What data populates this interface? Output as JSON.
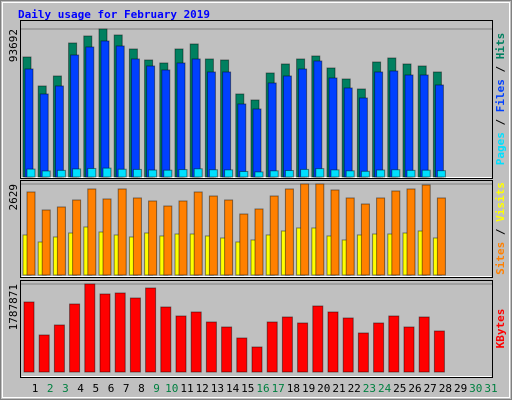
{
  "chart_data": [
    {
      "type": "bar",
      "title": "Daily usage for February 2019",
      "legend_separator": " / ",
      "ylim": [
        0,
        93692
      ],
      "yticks": [
        93692
      ],
      "series": [
        {
          "name": "Pages",
          "color": "#00e0ff",
          "values": [
            5000,
            3800,
            4200,
            5100,
            5400,
            5600,
            4900,
            4800,
            4400,
            4300,
            4700,
            5200,
            4600,
            4500,
            3500,
            3200,
            3900,
            4100,
            4800,
            5300,
            4500,
            3900,
            3600,
            4400,
            4600,
            4200,
            4300,
            4000,
            null,
            null,
            null
          ]
        },
        {
          "name": "Files",
          "color": "#0040ff",
          "values": [
            68370,
            52544,
            57608,
            77233,
            82298,
            86096,
            82931,
            74701,
            70270,
            67737,
            72169,
            74701,
            66471,
            66471,
            46213,
            43048,
            59508,
            63939,
            68370,
            73435,
            62673,
            56342,
            50012,
            66471,
            67104,
            64572,
            64572,
            58242,
            null,
            null,
            null
          ]
        },
        {
          "name": "Hits",
          "color": "#008060",
          "values": [
            75966,
            57607,
            63938,
            84828,
            89259,
            93692,
            89893,
            81030,
            74066,
            72167,
            81030,
            84195,
            74700,
            74066,
            52543,
            48745,
            65836,
            71534,
            74700,
            76599,
            69002,
            62038,
            55708,
            72800,
            75333,
            71534,
            70268,
            66470,
            null,
            null,
            null
          ]
        }
      ]
    },
    {
      "type": "bar",
      "legend_separator": " / ",
      "ylim": [
        0,
        2629
      ],
      "yticks": [
        2629
      ],
      "series": [
        {
          "name": "Sites",
          "color": "#ff8000",
          "values": [
            2398,
            1878,
            1965,
            2167,
            2485,
            2196,
            2485,
            2225,
            2138,
            1993,
            2138,
            2398,
            2282,
            2167,
            1762,
            1907,
            2282,
            2485,
            2629,
            2629,
            2456,
            2225,
            2051,
            2225,
            2427,
            2485,
            2600,
            2225,
            null,
            null,
            null
          ]
        },
        {
          "name": "Visits",
          "color": "#ffff00",
          "values": [
            1156,
            953,
            1098,
            1213,
            1387,
            1242,
            1156,
            1098,
            1213,
            1127,
            1184,
            1184,
            1127,
            1069,
            953,
            1011,
            1156,
            1271,
            1358,
            1358,
            1127,
            1011,
            1156,
            1184,
            1184,
            1213,
            1271,
            1069,
            null,
            null,
            null
          ]
        }
      ]
    },
    {
      "type": "bar",
      "ylim": [
        0,
        1787871
      ],
      "yticks": [
        1787871
      ],
      "series": [
        {
          "name": "KBytes",
          "color": "#ff0000",
          "values": [
            1422190,
            751729,
            954899,
            1381556,
            1787871,
            1584726,
            1605043,
            1503458,
            1706628,
            1320605,
            1137752,
            1219020,
            1015850,
            914265,
            690778,
            507925,
            1015850,
            1117435,
            995533,
            1340922,
            1219020,
            1097118,
            792363,
            995533,
            1137752,
            914265,
            1117435,
            832997,
            null,
            null,
            null
          ]
        }
      ],
      "categories": [
        "1",
        "2",
        "3",
        "4",
        "5",
        "6",
        "7",
        "8",
        "9",
        "10",
        "11",
        "12",
        "13",
        "14",
        "15",
        "16",
        "17",
        "18",
        "19",
        "20",
        "21",
        "22",
        "23",
        "24",
        "25",
        "26",
        "27",
        "28",
        "29",
        "30",
        "31"
      ],
      "category_colors": [
        "#000000",
        "#008040",
        "#008040",
        "#000000",
        "#000000",
        "#000000",
        "#000000",
        "#000000",
        "#008040",
        "#008040",
        "#000000",
        "#000000",
        "#000000",
        "#000000",
        "#000000",
        "#008040",
        "#008040",
        "#000000",
        "#000000",
        "#000000",
        "#000000",
        "#000000",
        "#008040",
        "#008040",
        "#000000",
        "#000000",
        "#000000",
        "#000000",
        "#000000",
        "#008040",
        "#008040"
      ]
    }
  ]
}
